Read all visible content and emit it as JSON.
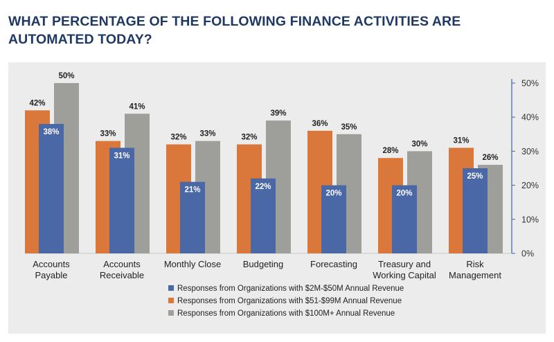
{
  "title_line1": "WHAT PERCENTAGE OF THE FOLLOWING FINANCE ACTIVITIES ARE",
  "title_line2": "AUTOMATED TODAY?",
  "chart_data": {
    "type": "bar",
    "title": "WHAT PERCENTAGE OF THE FOLLOWING FINANCE ACTIVITIES ARE AUTOMATED TODAY?",
    "categories": [
      [
        "Accounts",
        "Payable"
      ],
      [
        "Accounts",
        "Receivable"
      ],
      [
        "Monthly Close"
      ],
      [
        "Budgeting"
      ],
      [
        "Forecasting"
      ],
      [
        "Treasury and",
        "Working Capital"
      ],
      [
        "Risk",
        "Management"
      ]
    ],
    "series": [
      {
        "name": "Responses from Organizations with $2M-$50M Annual Revenue",
        "color": "#4a67a6",
        "values": [
          38,
          31,
          21,
          22,
          20,
          20,
          25
        ]
      },
      {
        "name": "Responses from Organizations with $51-$99M Annual Revenue",
        "color": "#d9783a",
        "values": [
          42,
          33,
          32,
          32,
          36,
          28,
          31
        ]
      },
      {
        "name": "Responses from Organizations with $100M+ Annual Revenue",
        "color": "#9e9e9a",
        "values": [
          50,
          41,
          33,
          39,
          35,
          30,
          26
        ]
      }
    ],
    "yticks": [
      "0%",
      "10%",
      "20%",
      "30%",
      "40%",
      "50%"
    ],
    "ylim": [
      0,
      50
    ],
    "value_suffix": "%",
    "axis_color": "#3f5fa6",
    "legend_position": "bottom-center"
  }
}
